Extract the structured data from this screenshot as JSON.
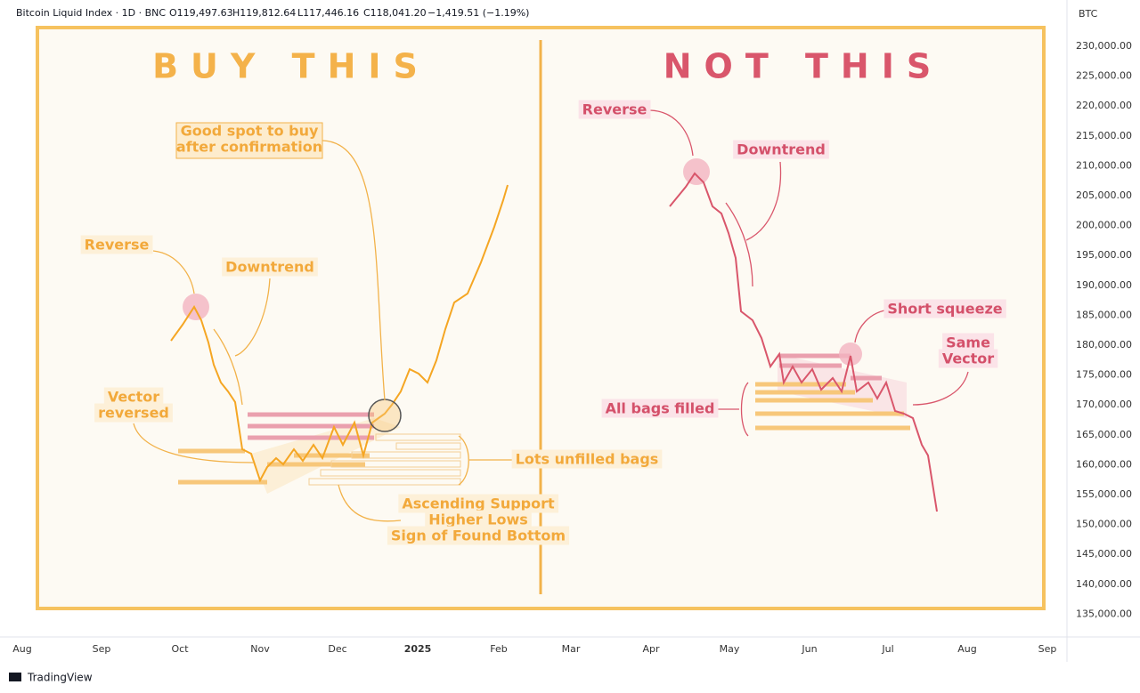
{
  "header": {
    "symbol": "Bitcoin Liquid Index · 1D · BNC",
    "ohlc": [
      "O119,497.63",
      "H119,812.64",
      "L117,446.16",
      "C118,041.20",
      "−1,419.51 (−1.19%)"
    ]
  },
  "price_axis": {
    "unit": "BTC",
    "labels": [
      "230,000.00",
      "225,000.00",
      "220,000.00",
      "215,000.00",
      "210,000.00",
      "205,000.00",
      "200,000.00",
      "195,000.00",
      "190,000.00",
      "185,000.00",
      "180,000.00",
      "175,000.00",
      "170,000.00",
      "165,000.00",
      "160,000.00",
      "155,000.00",
      "150,000.00",
      "145,000.00",
      "140,000.00",
      "135,000.00"
    ]
  },
  "time_axis": {
    "labels": [
      "Aug",
      "Sep",
      "Oct",
      "Nov",
      "Dec",
      "2025",
      "Feb",
      "Mar",
      "Apr",
      "May",
      "Jun",
      "Jul",
      "Aug",
      "Sep"
    ]
  },
  "left": {
    "title": "BUY THIS",
    "notes": [
      {
        "lines": [
          "Good spot to buy",
          "after confirmation"
        ]
      },
      {
        "lines": [
          "Reverse"
        ]
      },
      {
        "lines": [
          "Downtrend"
        ]
      },
      {
        "lines": [
          "Vector",
          "reversed"
        ]
      },
      {
        "lines": [
          "Lots unfilled bags"
        ]
      },
      {
        "lines": [
          "Ascending Support",
          "Higher Lows",
          "Sign of Found Bottom"
        ]
      }
    ]
  },
  "right": {
    "title": "NOT THIS",
    "notes": [
      {
        "lines": [
          "Reverse"
        ]
      },
      {
        "lines": [
          "Downtrend"
        ]
      },
      {
        "lines": [
          "Short squeeze"
        ]
      },
      {
        "lines": [
          "Same",
          "Vector"
        ]
      },
      {
        "lines": [
          "All bags filled"
        ]
      }
    ]
  },
  "footer": {
    "brand": "TradingView"
  }
}
